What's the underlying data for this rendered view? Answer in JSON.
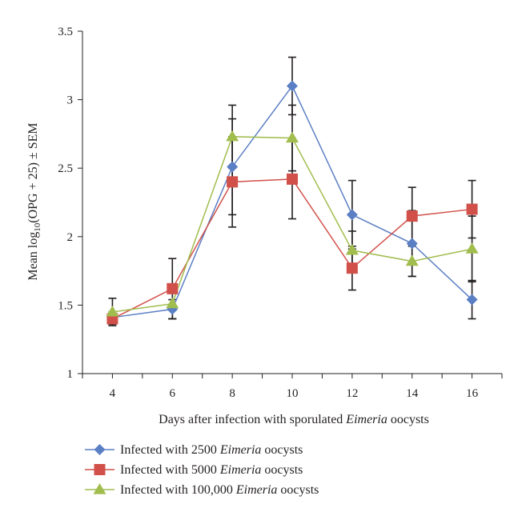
{
  "chart_data": {
    "type": "line",
    "xlabel": {
      "prefix": "Days after infection with sporulated ",
      "italic": "Eimeria",
      "suffix": " oocysts"
    },
    "ylabel": {
      "prefix": "Mean log",
      "subscript": "10",
      "suffix": "(OPG + 25) ± SEM"
    },
    "x": [
      4,
      6,
      8,
      10,
      12,
      14,
      16
    ],
    "x_ticks": [
      "4",
      "6",
      "8",
      "10",
      "12",
      "14",
      "16"
    ],
    "y_ticks": [
      "1",
      "1.5",
      "2",
      "2.5",
      "3",
      "3.5"
    ],
    "xlim": [
      3,
      17
    ],
    "ylim": [
      1,
      3.5
    ],
    "grid": false,
    "legend_position": "bottom-left",
    "series": [
      {
        "name_prefix": "Infected with 2500 ",
        "name_italic": "Eimeria",
        "name_suffix": " oocysts",
        "color": "#5b7fc4",
        "marker": "diamond",
        "values": [
          1.41,
          1.47,
          2.51,
          3.1,
          2.16,
          1.95,
          1.54
        ],
        "errors": [
          0.04,
          0.07,
          0.35,
          0.21,
          0.25,
          0.24,
          0.14
        ]
      },
      {
        "name_prefix": "Infected with 5000 ",
        "name_italic": "Eimeria",
        "name_suffix": " oocysts",
        "color": "#d1504a",
        "marker": "square",
        "values": [
          1.4,
          1.62,
          2.4,
          2.42,
          1.77,
          2.15,
          2.2
        ],
        "errors": [
          0.04,
          0.22,
          0.33,
          0.29,
          0.16,
          0.21,
          0.21
        ]
      },
      {
        "name_prefix": "Infected with 100,000 ",
        "name_italic": "Eimeria",
        "name_suffix": " oocysts",
        "color": "#a1bd4e",
        "marker": "triangle",
        "values": [
          1.45,
          1.51,
          2.73,
          2.72,
          1.9,
          1.82,
          1.91
        ],
        "errors": [
          0.1,
          0.11,
          0.23,
          0.24,
          0.14,
          0.11,
          0.24
        ]
      }
    ]
  }
}
